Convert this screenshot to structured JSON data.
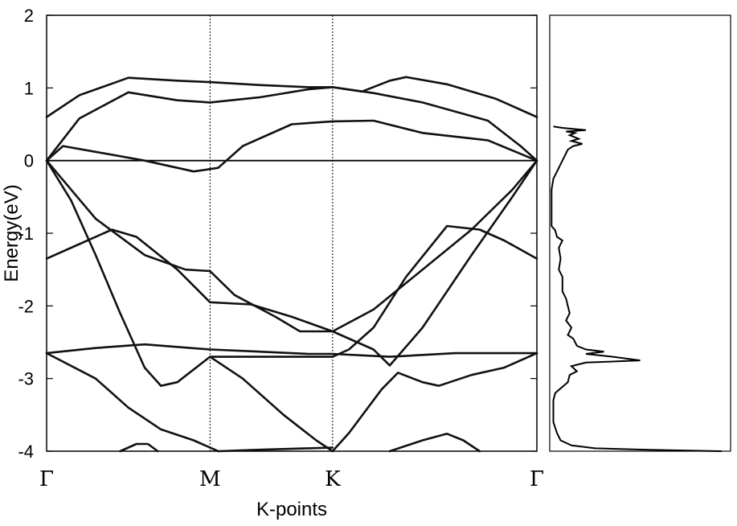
{
  "chart_data": [
    {
      "type": "line",
      "panel": "band-structure",
      "xlabel": "K-points",
      "ylabel": "Energy(eV)",
      "ylim": [
        -4,
        2
      ],
      "yticks": [
        {
          "value": 2,
          "label": "2"
        },
        {
          "value": 1,
          "label": "1"
        },
        {
          "value": 0,
          "label": "0"
        },
        {
          "value": -1,
          "label": "-1"
        },
        {
          "value": -2,
          "label": "-2"
        },
        {
          "value": -3,
          "label": "-3"
        },
        {
          "value": -4,
          "label": "-4"
        }
      ],
      "xlim": [
        0,
        3
      ],
      "high_symmetry_points": [
        {
          "label": "Γ",
          "x": 0
        },
        {
          "label": "M",
          "x": 1
        },
        {
          "label": "K",
          "x": 1.75
        },
        {
          "label": "Γ",
          "x": 3
        }
      ],
      "fermi_level": 0,
      "grid": false,
      "series": [
        {
          "points": [
            [
              0,
              0.6
            ],
            [
              0.2,
              0.9
            ],
            [
              0.5,
              1.14
            ],
            [
              0.8,
              1.1
            ],
            [
              1,
              1.08
            ],
            [
              1.3,
              1.04
            ],
            [
              1.6,
              1.01
            ],
            [
              1.75,
              1.01
            ],
            [
              1.93,
              0.95
            ],
            [
              2.1,
              1.1
            ],
            [
              2.2,
              1.15
            ],
            [
              2.45,
              1.05
            ],
            [
              2.75,
              0.85
            ],
            [
              3,
              0.6
            ]
          ]
        },
        {
          "points": [
            [
              0,
              0
            ],
            [
              0.2,
              0.58
            ],
            [
              0.5,
              0.94
            ],
            [
              0.8,
              0.83
            ],
            [
              1,
              0.8
            ],
            [
              1.3,
              0.87
            ],
            [
              1.6,
              0.98
            ],
            [
              1.75,
              1.01
            ],
            [
              2,
              0.93
            ],
            [
              2.3,
              0.8
            ],
            [
              2.7,
              0.55
            ],
            [
              2.9,
              0.2
            ],
            [
              3,
              0
            ]
          ]
        },
        {
          "points": [
            [
              0,
              0
            ],
            [
              0.1,
              0.2
            ],
            [
              0.3,
              0.12
            ],
            [
              0.6,
              0
            ],
            [
              0.9,
              -0.15
            ],
            [
              1.05,
              -0.1
            ],
            [
              1.2,
              0.2
            ],
            [
              1.5,
              0.5
            ],
            [
              1.75,
              0.54
            ],
            [
              2,
              0.55
            ],
            [
              2.3,
              0.38
            ],
            [
              2.7,
              0.28
            ],
            [
              3,
              0
            ]
          ]
        },
        {
          "points": [
            [
              0,
              0
            ],
            [
              0.15,
              -0.4
            ],
            [
              0.3,
              -0.8
            ],
            [
              0.6,
              -1.3
            ],
            [
              0.85,
              -1.5
            ],
            [
              1,
              -1.52
            ],
            [
              1.15,
              -1.85
            ],
            [
              1.4,
              -2.15
            ],
            [
              1.55,
              -2.35
            ],
            [
              1.75,
              -2.35
            ],
            [
              2,
              -2.05
            ],
            [
              2.3,
              -1.5
            ],
            [
              2.6,
              -0.95
            ],
            [
              2.85,
              -0.4
            ],
            [
              3,
              0
            ]
          ]
        },
        {
          "points": [
            [
              0,
              0
            ],
            [
              0.15,
              -0.55
            ],
            [
              0.3,
              -1.3
            ],
            [
              0.45,
              -2.1
            ],
            [
              0.6,
              -2.85
            ],
            [
              0.7,
              -3.1
            ],
            [
              0.8,
              -3.05
            ],
            [
              1,
              -2.7
            ],
            [
              1.3,
              -2.7
            ],
            [
              1.75,
              -2.7
            ],
            [
              1.85,
              -2.6
            ],
            [
              2,
              -2.3
            ],
            [
              2.2,
              -1.6
            ],
            [
              2.45,
              -0.9
            ],
            [
              2.65,
              -0.95
            ],
            [
              2.8,
              -1.1
            ],
            [
              3,
              -1.35
            ]
          ]
        },
        {
          "points": [
            [
              0,
              -1.35
            ],
            [
              0.2,
              -1.15
            ],
            [
              0.4,
              -0.95
            ],
            [
              0.55,
              -1.05
            ],
            [
              0.8,
              -1.5
            ],
            [
              1,
              -1.95
            ],
            [
              1.25,
              -1.98
            ],
            [
              1.5,
              -2.15
            ],
            [
              1.75,
              -2.35
            ],
            [
              2,
              -2.6
            ],
            [
              2.1,
              -2.82
            ],
            [
              2.3,
              -2.3
            ],
            [
              2.6,
              -1.3
            ],
            [
              2.85,
              -0.5
            ],
            [
              3,
              0
            ]
          ]
        },
        {
          "points": [
            [
              0,
              -2.65
            ],
            [
              0.3,
              -2.58
            ],
            [
              0.6,
              -2.53
            ],
            [
              1,
              -2.6
            ],
            [
              1.3,
              -2.63
            ],
            [
              1.6,
              -2.66
            ],
            [
              1.75,
              -2.66
            ],
            [
              2.1,
              -2.7
            ],
            [
              2.5,
              -2.65
            ],
            [
              3,
              -2.65
            ]
          ]
        },
        {
          "points": [
            [
              0,
              -2.65
            ],
            [
              0.3,
              -3.0
            ],
            [
              0.5,
              -3.4
            ],
            [
              0.7,
              -3.7
            ],
            [
              0.9,
              -3.85
            ],
            [
              1.05,
              -4.0
            ]
          ]
        },
        {
          "points": [
            [
              1,
              -2.7
            ],
            [
              1.2,
              -3.0
            ],
            [
              1.45,
              -3.5
            ],
            [
              1.65,
              -3.85
            ],
            [
              1.75,
              -4.0
            ],
            [
              1.85,
              -3.75
            ],
            [
              2.05,
              -3.15
            ],
            [
              2.15,
              -2.92
            ],
            [
              2.3,
              -3.05
            ],
            [
              2.4,
              -3.1
            ],
            [
              2.6,
              -2.95
            ],
            [
              2.8,
              -2.85
            ],
            [
              3,
              -2.65
            ]
          ]
        },
        {
          "points": [
            [
              0.45,
              -4.0
            ],
            [
              0.55,
              -3.9
            ],
            [
              0.62,
              -3.9
            ],
            [
              0.68,
              -4.0
            ]
          ]
        },
        {
          "points": [
            [
              1.05,
              -4.0
            ],
            [
              1.3,
              -3.98
            ],
            [
              1.6,
              -3.96
            ],
            [
              1.75,
              -3.95
            ]
          ]
        },
        {
          "points": [
            [
              2.1,
              -4.0
            ],
            [
              2.3,
              -3.85
            ],
            [
              2.45,
              -3.76
            ],
            [
              2.55,
              -3.85
            ],
            [
              2.65,
              -4.0
            ]
          ]
        }
      ]
    },
    {
      "type": "line",
      "panel": "density-of-states",
      "ylim": [
        -4,
        2
      ],
      "xlim": [
        0,
        1
      ],
      "grid": false,
      "series": [
        {
          "points": [
            [
              0.02,
              0.47
            ],
            [
              0.07,
              0.45
            ],
            [
              0.2,
              0.42
            ],
            [
              0.09,
              0.4
            ],
            [
              0.14,
              0.38
            ],
            [
              0.11,
              0.35
            ],
            [
              0.16,
              0.3
            ],
            [
              0.12,
              0.27
            ],
            [
              0.18,
              0.23
            ],
            [
              0.13,
              0.2
            ],
            [
              0.1,
              0.15
            ],
            [
              0.08,
              0.05
            ],
            [
              0.05,
              -0.1
            ],
            [
              0.02,
              -0.25
            ],
            [
              0.01,
              -0.4
            ],
            [
              0.01,
              -0.7
            ],
            [
              0.01,
              -0.9
            ],
            [
              0.03,
              -0.96
            ],
            [
              0.04,
              -1.05
            ],
            [
              0.07,
              -1.1
            ],
            [
              0.05,
              -1.2
            ],
            [
              0.06,
              -1.35
            ],
            [
              0.05,
              -1.5
            ],
            [
              0.07,
              -1.6
            ],
            [
              0.07,
              -1.8
            ],
            [
              0.09,
              -1.9
            ],
            [
              0.1,
              -2.0
            ],
            [
              0.11,
              -2.1
            ],
            [
              0.09,
              -2.2
            ],
            [
              0.12,
              -2.3
            ],
            [
              0.1,
              -2.4
            ],
            [
              0.13,
              -2.45
            ],
            [
              0.15,
              -2.55
            ],
            [
              0.2,
              -2.6
            ],
            [
              0.3,
              -2.63
            ],
            [
              0.2,
              -2.66
            ],
            [
              0.35,
              -2.7
            ],
            [
              0.5,
              -2.75
            ],
            [
              0.2,
              -2.78
            ],
            [
              0.12,
              -2.83
            ],
            [
              0.15,
              -2.9
            ],
            [
              0.11,
              -2.95
            ],
            [
              0.1,
              -3.05
            ],
            [
              0.03,
              -3.2
            ],
            [
              0.02,
              -3.3
            ],
            [
              0.02,
              -3.6
            ],
            [
              0.04,
              -3.75
            ],
            [
              0.06,
              -3.85
            ],
            [
              0.12,
              -3.92
            ],
            [
              0.25,
              -3.96
            ],
            [
              0.55,
              -3.98
            ],
            [
              0.95,
              -4.0
            ]
          ]
        }
      ]
    }
  ]
}
